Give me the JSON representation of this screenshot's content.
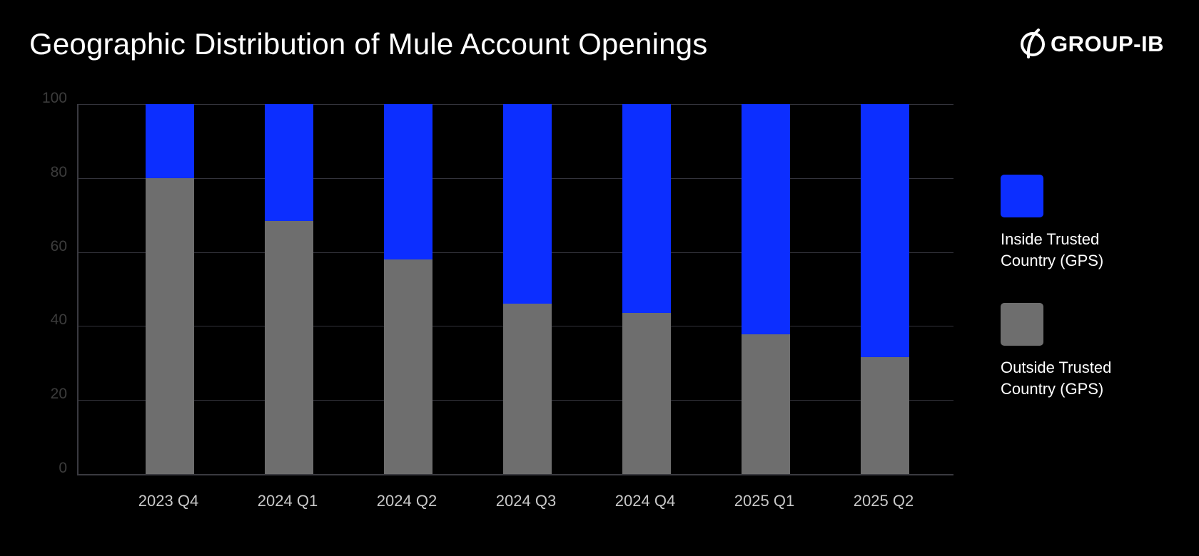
{
  "title": "Geographic Distribution of Mule Account Openings",
  "brand": {
    "name": "GROUP-IB",
    "icon": "group-ib-logo-icon"
  },
  "colors": {
    "inside": "#0c2eff",
    "outside": "#6e6e6e",
    "background": "#000000",
    "grid": "#34343c"
  },
  "legend": [
    {
      "label": "Inside Trusted Country (GPS)",
      "color": "#0c2eff"
    },
    {
      "label": "Outside Trusted Country (GPS)",
      "color": "#6e6e6e"
    }
  ],
  "y_ticks": [
    "0",
    "20",
    "40",
    "60",
    "80",
    "100"
  ],
  "chart_data": {
    "type": "bar",
    "stacked": true,
    "title": "Geographic Distribution of Mule Account Openings",
    "xlabel": "",
    "ylabel": "",
    "ylim": [
      0,
      100
    ],
    "grid": true,
    "legend_position": "right",
    "categories": [
      "2023 Q4",
      "2024 Q1",
      "2024 Q2",
      "2024 Q3",
      "2024 Q4",
      "2025 Q1",
      "2025 Q2"
    ],
    "series": [
      {
        "name": "Outside Trusted Country (GPS)",
        "color": "#6e6e6e",
        "values": [
          80,
          68.4,
          58,
          46,
          43.5,
          37.8,
          31.6
        ]
      },
      {
        "name": "Inside Trusted Country (GPS)",
        "color": "#0c2eff",
        "values": [
          20,
          31.6,
          42,
          54,
          56.5,
          62.2,
          68.4
        ]
      }
    ]
  }
}
